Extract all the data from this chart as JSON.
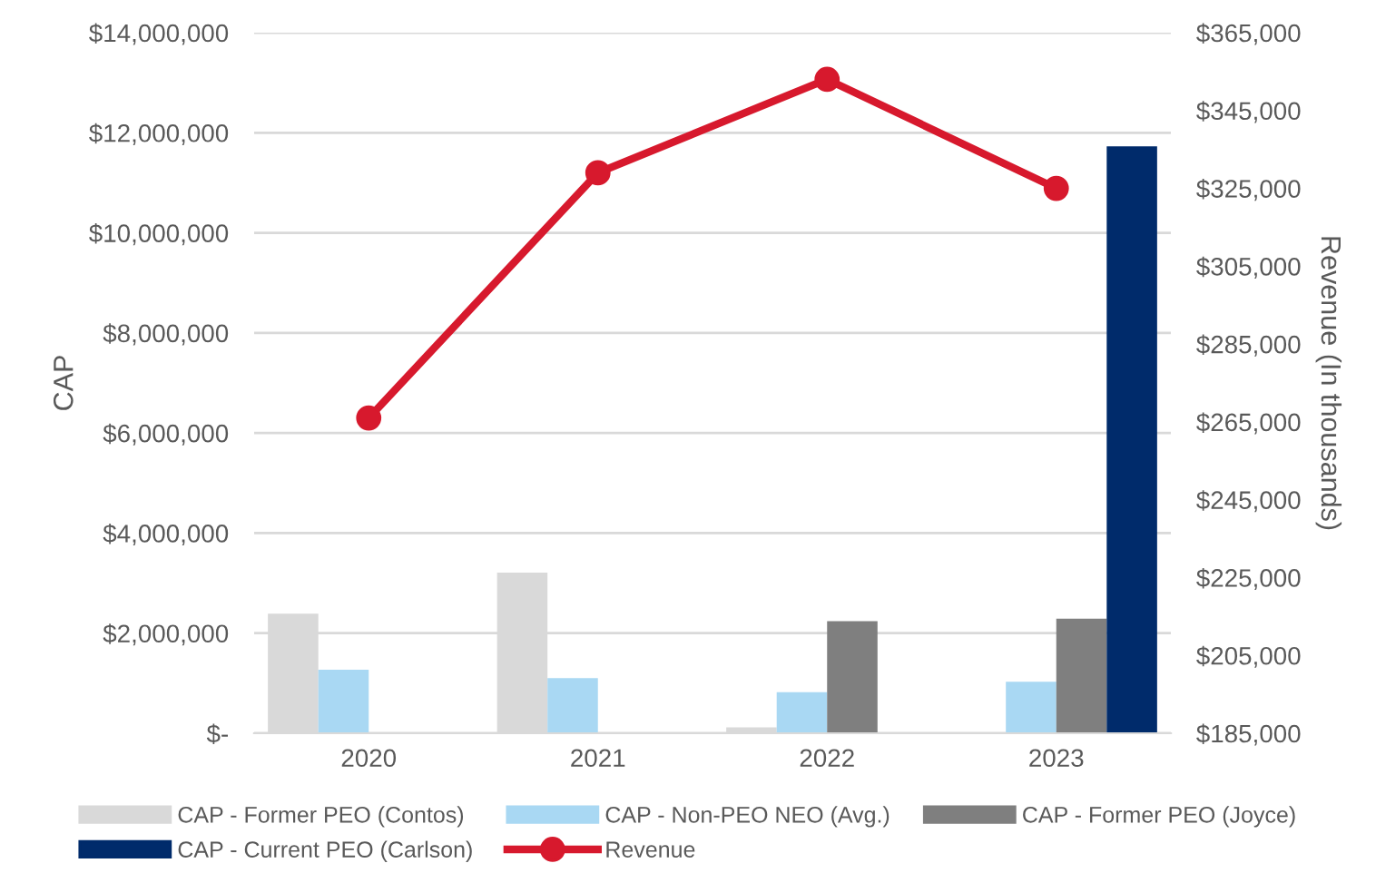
{
  "chart_data": {
    "type": "bar",
    "categories": [
      "2020",
      "2021",
      "2022",
      "2023"
    ],
    "ylabel": "CAP",
    "y2label": "Revenue (In thousands)",
    "series": [
      {
        "name": "CAP - Former PEO (Contos)",
        "color": "#d9d9d9",
        "values": [
          2390000,
          3210000,
          120000,
          null
        ]
      },
      {
        "name": "CAP - Non-PEO NEO (Avg.)",
        "color": "#a9d8f3",
        "values": [
          1270000,
          1100000,
          820000,
          1030000
        ]
      },
      {
        "name": "CAP - Former PEO (Joyce)",
        "color": "#7f7f7f",
        "values": [
          null,
          null,
          2240000,
          2290000
        ]
      },
      {
        "name": "CAP - Current PEO (Carlson)",
        "color": "#002b6b",
        "values": [
          null,
          null,
          null,
          11730000
        ]
      },
      {
        "name": "Revenue",
        "type": "line",
        "axis": "y2",
        "color": "#d7192d",
        "marker": "circle",
        "values": [
          266000,
          329000,
          353000,
          325000
        ]
      }
    ],
    "ylim": [
      0,
      14000000
    ],
    "yticks": [
      {
        "value": 0,
        "label": "$-"
      },
      {
        "value": 2000000,
        "label": "$2,000,000"
      },
      {
        "value": 4000000,
        "label": "$4,000,000"
      },
      {
        "value": 6000000,
        "label": "$6,000,000"
      },
      {
        "value": 8000000,
        "label": "$8,000,000"
      },
      {
        "value": 10000000,
        "label": "$10,000,000"
      },
      {
        "value": 12000000,
        "label": "$12,000,000"
      },
      {
        "value": 14000000,
        "label": "$14,000,000"
      }
    ],
    "y2lim": [
      185000,
      365000
    ],
    "y2ticks": [
      {
        "value": 185000,
        "label": "$185,000"
      },
      {
        "value": 205000,
        "label": "$205,000"
      },
      {
        "value": 225000,
        "label": "$225,000"
      },
      {
        "value": 245000,
        "label": "$245,000"
      },
      {
        "value": 265000,
        "label": "$265,000"
      },
      {
        "value": 285000,
        "label": "$285,000"
      },
      {
        "value": 305000,
        "label": "$305,000"
      },
      {
        "value": 325000,
        "label": "$325,000"
      },
      {
        "value": 345000,
        "label": "$345,000"
      },
      {
        "value": 365000,
        "label": "$365,000"
      }
    ],
    "grid": "y",
    "legend": "bottom"
  }
}
